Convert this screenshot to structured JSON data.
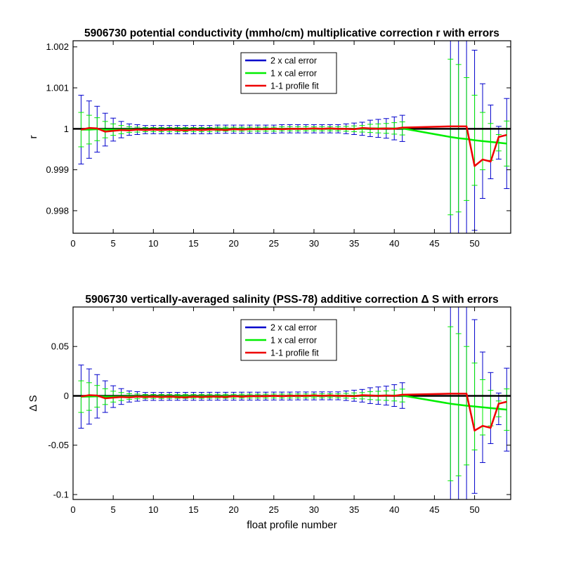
{
  "chart_data": [
    {
      "type": "line",
      "title": "5906730 potential conductivity (mmho/cm) multiplicative correction r with errors",
      "xlabel": "",
      "ylabel": "r",
      "xlim": [
        0,
        54.5
      ],
      "ylim": [
        0.99745,
        1.00215
      ],
      "xticks": [
        0,
        5,
        10,
        15,
        20,
        25,
        30,
        35,
        40,
        45,
        50
      ],
      "xtick_labels": [
        "0",
        "5",
        "10",
        "15",
        "20",
        "25",
        "30",
        "35",
        "40",
        "45",
        "50"
      ],
      "yticks": [
        0.998,
        0.999,
        1,
        1.001,
        1.002
      ],
      "ytick_labels": [
        "0.998",
        "0.999",
        "1",
        "1.001",
        "1.002"
      ],
      "reference_line": 1,
      "legend_position": "top-center",
      "legend": [
        "2 x cal error",
        "1 x cal error",
        "1-1 profile fit"
      ],
      "colors": {
        "two_x": "#0000cc",
        "one_x": "#00ee00",
        "fit": "#ee0000",
        "reference": "#000000"
      },
      "series": [
        {
          "name": "1-1 profile fit",
          "x": [
            1,
            2,
            3,
            4,
            5,
            6,
            7,
            8,
            9,
            10,
            11,
            12,
            13,
            14,
            15,
            16,
            17,
            18,
            19,
            20,
            21,
            22,
            23,
            24,
            25,
            26,
            27,
            28,
            29,
            30,
            31,
            32,
            33,
            34,
            35,
            36,
            37,
            38,
            39,
            40,
            41,
            47,
            48,
            49,
            50,
            51,
            52,
            53,
            54
          ],
          "y": [
            0.99998,
            1.00002,
            1.00001,
            0.99993,
            0.99995,
            0.99997,
            0.99996,
            0.99998,
            0.99997,
            0.99998,
            0.99997,
            0.99998,
            0.99997,
            0.99996,
            0.99998,
            0.99997,
            0.99998,
            0.99998,
            0.99997,
            0.99999,
            0.99998,
            0.99999,
            0.99999,
            0.99999,
            1.0,
            0.99999,
            1.0,
            1.0,
            1.0,
            1.00001,
            1.0,
            1.00001,
            1.0,
            1.0,
            0.99999,
            1.00002,
            1.00001,
            1.0,
            1.00001,
            1.0,
            1.00003,
            1.00006,
            1.00006,
            1.00006,
            0.99909,
            0.99925,
            0.9992,
            0.9998,
            0.99985
          ]
        },
        {
          "name": "1 x cal error",
          "x": [
            1,
            2,
            3,
            4,
            5,
            6,
            7,
            8,
            9,
            10,
            11,
            12,
            13,
            14,
            15,
            16,
            17,
            18,
            19,
            20,
            21,
            22,
            23,
            24,
            25,
            26,
            27,
            28,
            29,
            30,
            31,
            32,
            33,
            34,
            35,
            36,
            37,
            38,
            39,
            40,
            41,
            47,
            48,
            49,
            50,
            51,
            52,
            53,
            54
          ],
          "y": [
            0.99998,
            0.99998,
            0.99999,
            0.99998,
            0.99998,
            0.99998,
            0.99998,
            0.99998,
            0.99998,
            0.99998,
            0.99998,
            0.99998,
            0.99998,
            0.99998,
            0.99998,
            0.99998,
            0.99998,
            0.99999,
            0.99999,
            0.99999,
            0.99999,
            0.99999,
            0.99999,
            0.99999,
            0.99999,
            1.0,
            1.0,
            1.0,
            1.0,
            1.0,
            1.0,
            1.0,
            1.0,
            1.0,
            1.0,
            1.0,
            1.00001,
            1.00001,
            1.00001,
            1.00001,
            1.00001,
            0.9998,
            0.99977,
            0.99975,
            0.99972,
            0.9997,
            0.99968,
            0.99966,
            0.99964
          ],
          "err": [
            0.00042,
            0.00035,
            0.00028,
            0.0002,
            0.00014,
            0.0001,
            7e-05,
            6e-05,
            5e-05,
            5e-05,
            5e-05,
            5e-05,
            5e-05,
            5e-05,
            5e-05,
            5e-05,
            5e-05,
            5e-05,
            5e-05,
            5e-05,
            5e-05,
            5e-05,
            5e-05,
            5e-05,
            5e-05,
            5e-05,
            5e-05,
            5e-05,
            5e-05,
            5e-05,
            5e-05,
            5e-05,
            5e-05,
            6e-05,
            7e-05,
            8e-05,
            0.0001,
            0.00011,
            0.00012,
            0.00014,
            0.00016,
            0.0019,
            0.0018,
            0.0015,
            0.0011,
            0.0007,
            0.00045,
            0.0002,
            0.00055
          ]
        },
        {
          "name": "2 x cal error",
          "x": [
            1,
            2,
            3,
            4,
            5,
            6,
            7,
            8,
            9,
            10,
            11,
            12,
            13,
            14,
            15,
            16,
            17,
            18,
            19,
            20,
            21,
            22,
            23,
            24,
            25,
            26,
            27,
            28,
            29,
            30,
            31,
            32,
            33,
            34,
            35,
            36,
            37,
            38,
            39,
            40,
            41,
            47,
            48,
            49,
            50,
            51,
            52,
            53,
            54
          ],
          "err": [
            0.00084,
            0.0007,
            0.00056,
            0.0004,
            0.00028,
            0.0002,
            0.00014,
            0.00012,
            0.0001,
            0.0001,
            0.0001,
            0.0001,
            0.0001,
            0.0001,
            0.0001,
            0.0001,
            0.0001,
            0.0001,
            0.0001,
            0.0001,
            0.0001,
            0.0001,
            0.0001,
            0.0001,
            0.0001,
            0.0001,
            0.0001,
            0.0001,
            0.0001,
            0.0001,
            0.0001,
            0.0001,
            0.0001,
            0.00012,
            0.00014,
            0.00016,
            0.0002,
            0.00022,
            0.00024,
            0.00028,
            0.00032,
            0.0038,
            0.0036,
            0.003,
            0.0022,
            0.0014,
            0.0009,
            0.0004,
            0.0011
          ]
        }
      ]
    },
    {
      "type": "line",
      "title": "5906730 vertically-averaged salinity (PSS-78) additive correction Δ S with errors",
      "xlabel": "float profile number",
      "ylabel": "Δ S",
      "xlim": [
        0,
        54.5
      ],
      "ylim": [
        -0.105,
        0.09
      ],
      "xticks": [
        0,
        5,
        10,
        15,
        20,
        25,
        30,
        35,
        40,
        45,
        50
      ],
      "xtick_labels": [
        "0",
        "5",
        "10",
        "15",
        "20",
        "25",
        "30",
        "35",
        "40",
        "45",
        "50"
      ],
      "yticks": [
        -0.1,
        -0.05,
        0,
        0.05
      ],
      "ytick_labels": [
        "-0.1",
        "-0.05",
        "0",
        "0.05"
      ],
      "reference_line": 0,
      "legend_position": "top-center",
      "legend": [
        "2 x cal error",
        "1 x cal error",
        "1-1 profile fit"
      ],
      "colors": {
        "two_x": "#0000cc",
        "one_x": "#00ee00",
        "fit": "#ee0000",
        "reference": "#000000"
      },
      "series": [
        {
          "name": "1-1 profile fit",
          "x": [
            1,
            2,
            3,
            4,
            5,
            6,
            7,
            8,
            9,
            10,
            11,
            12,
            13,
            14,
            15,
            16,
            17,
            18,
            19,
            20,
            21,
            22,
            23,
            24,
            25,
            26,
            27,
            28,
            29,
            30,
            31,
            32,
            33,
            34,
            35,
            36,
            37,
            38,
            39,
            40,
            41,
            47,
            48,
            49,
            50,
            51,
            52,
            53,
            54
          ],
          "y": [
            -0.0007,
            0.0007,
            0.0003,
            -0.0025,
            -0.0018,
            -0.0012,
            -0.0015,
            -0.0008,
            -0.0012,
            -0.0008,
            -0.0012,
            -0.0008,
            -0.0012,
            -0.0015,
            -0.0008,
            -0.0012,
            -0.0008,
            -0.0008,
            -0.0012,
            -0.0004,
            -0.0008,
            -0.0004,
            -0.0004,
            -0.0004,
            0.0,
            -0.0004,
            0.0,
            0.0,
            0.0,
            0.0004,
            0.0,
            0.0004,
            0.0,
            0.0,
            -0.0004,
            0.0007,
            0.0004,
            0.0,
            0.0004,
            0.0,
            0.0011,
            0.0022,
            0.0022,
            0.0022,
            -0.0352,
            -0.0304,
            -0.0324,
            -0.008,
            -0.006
          ]
        },
        {
          "name": "1 x cal error",
          "x": [
            1,
            2,
            3,
            4,
            5,
            6,
            7,
            8,
            9,
            10,
            11,
            12,
            13,
            14,
            15,
            16,
            17,
            18,
            19,
            20,
            21,
            22,
            23,
            24,
            25,
            26,
            27,
            28,
            29,
            30,
            31,
            32,
            33,
            34,
            35,
            36,
            37,
            38,
            39,
            40,
            41,
            47,
            48,
            49,
            50,
            51,
            52,
            53,
            54
          ],
          "y": [
            -0.0008,
            -0.0007,
            -0.0005,
            -0.0008,
            -0.0008,
            -0.0007,
            -0.0007,
            -0.0006,
            -0.0006,
            -0.0006,
            -0.0006,
            -0.0005,
            -0.0005,
            -0.0005,
            -0.0005,
            -0.0005,
            -0.0004,
            -0.0004,
            -0.0004,
            -0.0004,
            -0.0003,
            -0.0003,
            -0.0003,
            -0.0003,
            -0.0002,
            -0.0002,
            -0.0002,
            -0.0001,
            -0.0001,
            -0.0001,
            0.0,
            0.0,
            0.0,
            0.0001,
            0.0001,
            0.0001,
            0.0002,
            0.0002,
            0.0002,
            0.0003,
            0.0003,
            -0.008,
            -0.009,
            -0.01,
            -0.0108,
            -0.0116,
            -0.0124,
            -0.0132,
            -0.014
          ],
          "err": [
            0.016,
            0.014,
            0.011,
            0.008,
            0.0055,
            0.004,
            0.0028,
            0.0024,
            0.002,
            0.002,
            0.002,
            0.002,
            0.002,
            0.002,
            0.002,
            0.002,
            0.002,
            0.002,
            0.002,
            0.002,
            0.002,
            0.002,
            0.002,
            0.002,
            0.002,
            0.002,
            0.002,
            0.002,
            0.002,
            0.002,
            0.002,
            0.002,
            0.002,
            0.0024,
            0.0028,
            0.0032,
            0.004,
            0.0044,
            0.0048,
            0.0055,
            0.0065,
            0.078,
            0.072,
            0.06,
            0.044,
            0.028,
            0.018,
            0.008,
            0.021
          ]
        },
        {
          "name": "2 x cal error",
          "x": [
            1,
            2,
            3,
            4,
            5,
            6,
            7,
            8,
            9,
            10,
            11,
            12,
            13,
            14,
            15,
            16,
            17,
            18,
            19,
            20,
            21,
            22,
            23,
            24,
            25,
            26,
            27,
            28,
            29,
            30,
            31,
            32,
            33,
            34,
            35,
            36,
            37,
            38,
            39,
            40,
            41,
            47,
            48,
            49,
            50,
            51,
            52,
            53,
            54
          ],
          "err": [
            0.032,
            0.028,
            0.022,
            0.016,
            0.011,
            0.008,
            0.0056,
            0.0048,
            0.004,
            0.004,
            0.004,
            0.004,
            0.004,
            0.004,
            0.004,
            0.004,
            0.004,
            0.004,
            0.004,
            0.004,
            0.004,
            0.004,
            0.004,
            0.004,
            0.004,
            0.004,
            0.004,
            0.004,
            0.004,
            0.004,
            0.004,
            0.004,
            0.004,
            0.0048,
            0.0056,
            0.0064,
            0.008,
            0.0088,
            0.0096,
            0.011,
            0.013,
            0.156,
            0.144,
            0.12,
            0.088,
            0.056,
            0.036,
            0.016,
            0.042
          ]
        }
      ]
    }
  ]
}
